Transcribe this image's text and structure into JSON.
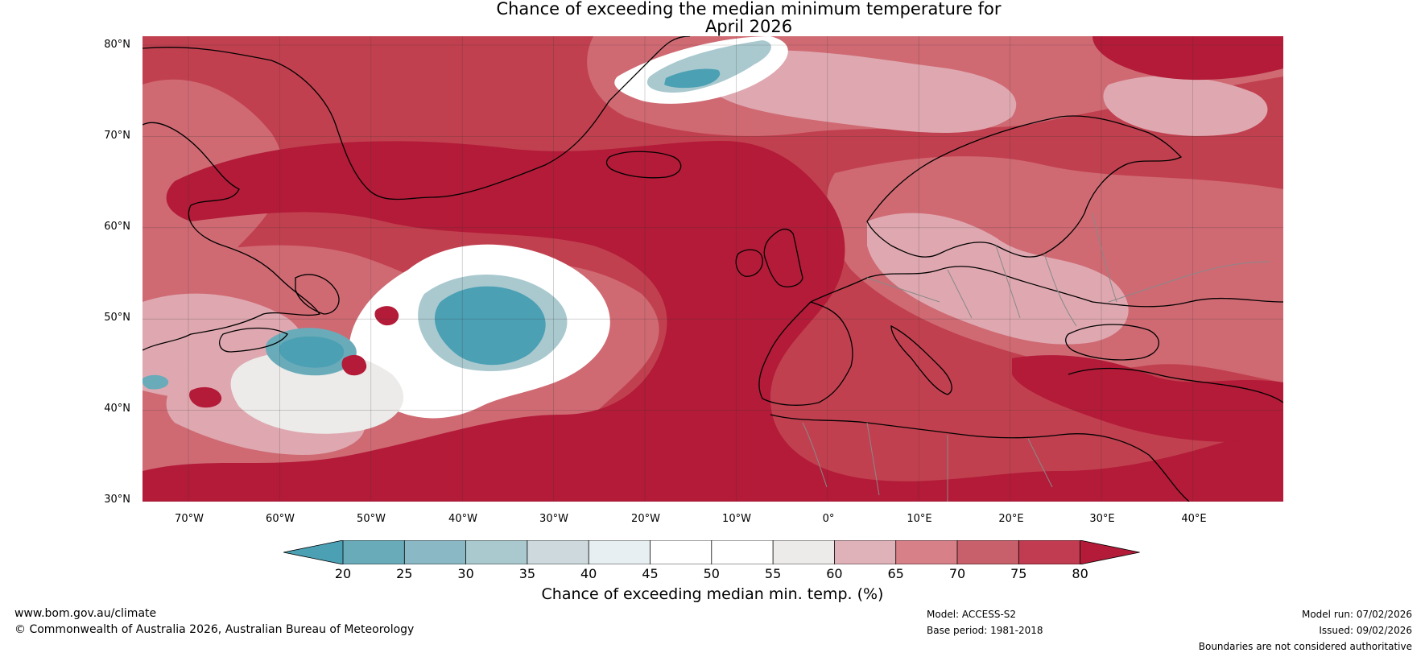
{
  "title": {
    "line1": "Chance of exceeding the median minimum temperature for",
    "line2": "April 2026"
  },
  "map": {
    "lat_labels": [
      "80°N",
      "70°N",
      "60°N",
      "50°N",
      "40°N",
      "30°N"
    ],
    "lon_labels": [
      "70°W",
      "60°W",
      "50°W",
      "40°W",
      "30°W",
      "20°W",
      "10°W",
      "0°",
      "10°E",
      "20°E",
      "30°E",
      "40°E"
    ],
    "colors": {
      "c80": "#b31b38",
      "c75": "#c1404f",
      "c70": "#cf6a73",
      "c65": "#dfa8b0",
      "c55": "#ecebe9",
      "c50": "#ffffff",
      "c35": "#a9c9cf",
      "c25": "#6aabba",
      "c20": "#4ba0b4",
      "coast": "#000000",
      "border": "#888888"
    }
  },
  "colorbar": {
    "ticks": [
      "20",
      "25",
      "30",
      "35",
      "40",
      "45",
      "50",
      "55",
      "60",
      "65",
      "70",
      "75",
      "80"
    ],
    "bin_colors": [
      "#4ba0b4",
      "#6aabba",
      "#8ab8c5",
      "#a9c9cf",
      "#cdd9dc",
      "#e8eff2",
      "#ffffff",
      "#ffffff",
      "#ecebe9",
      "#dfb1b8",
      "#d78088",
      "#c7606a",
      "#c13c50",
      "#b31b38"
    ],
    "title": "Chance of exceeding median min. temp. (%)"
  },
  "footer": {
    "url": "www.bom.gov.au/climate",
    "copyright": "© Commonwealth of Australia 2026, Australian Bureau of Meteorology",
    "model": "Model: ACCESS-S2",
    "base_period": "Base period: 1981-2018",
    "model_run": "Model run: 07/02/2026",
    "issued": "Issued: 09/02/2026",
    "disclaimer": "Boundaries are not considered authoritative"
  }
}
